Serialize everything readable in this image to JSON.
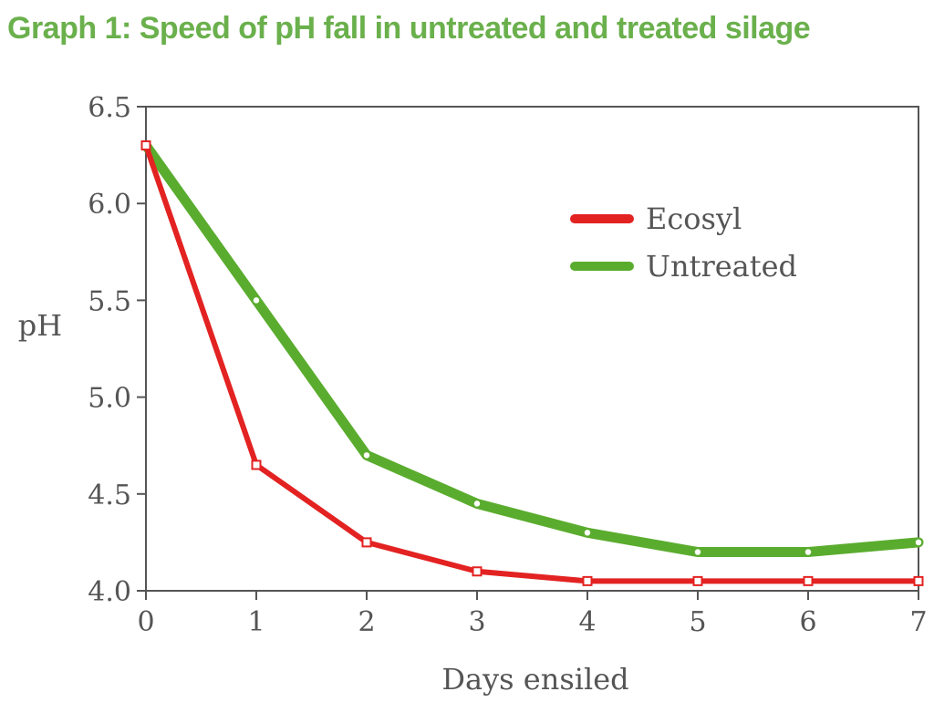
{
  "title": "Graph 1: Speed of pH fall in untreated and treated silage",
  "colors": {
    "title": "#6ab04c",
    "ecosyl": "#e32222",
    "untreated": "#5aac2e",
    "axis": "#555555"
  },
  "chart_data": {
    "type": "line",
    "title": "Graph 1: Speed of pH fall in untreated and treated silage",
    "xlabel": "Days ensiled",
    "ylabel": "pH",
    "x": [
      0,
      1,
      2,
      3,
      4,
      5,
      6,
      7
    ],
    "xlim": [
      0,
      7
    ],
    "ylim": [
      4.0,
      6.5
    ],
    "xticks": [
      "0",
      "1",
      "2",
      "3",
      "4",
      "5",
      "6",
      "7"
    ],
    "yticks": [
      "4.0",
      "4.5",
      "5.0",
      "5.5",
      "6.0",
      "6.5"
    ],
    "grid": false,
    "legend_position": "upper-right",
    "series": [
      {
        "name": "Ecosyl",
        "color": "#e32222",
        "marker": "square",
        "values": [
          6.3,
          4.65,
          4.25,
          4.1,
          4.05,
          4.05,
          4.05,
          4.05
        ]
      },
      {
        "name": "Untreated",
        "color": "#5aac2e",
        "marker": "circle",
        "values": [
          6.3,
          5.5,
          4.7,
          4.45,
          4.3,
          4.2,
          4.2,
          4.25
        ]
      }
    ]
  }
}
